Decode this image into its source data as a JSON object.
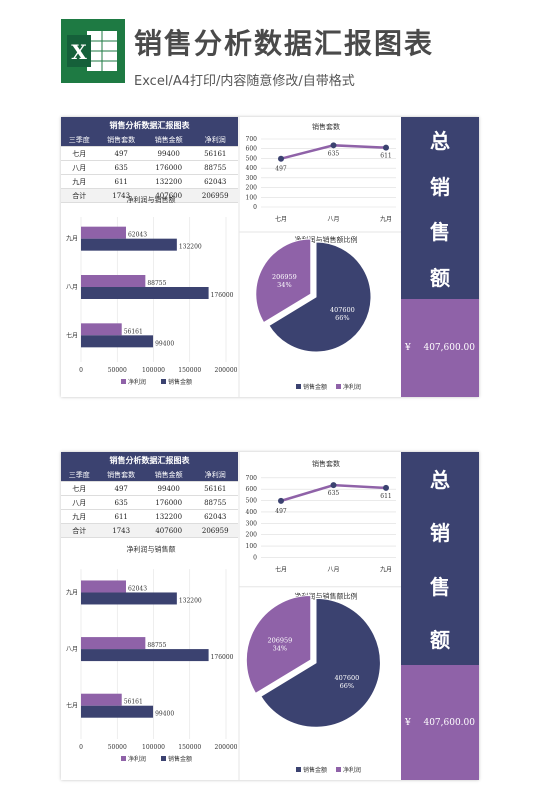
{
  "header": {
    "title": "销售分析数据汇报图表",
    "subtitle": "Excel/A4打印/内容随意修改/自带格式",
    "logo_letter": "X"
  },
  "table": {
    "caption": "销售分析数据汇报图表",
    "columns": [
      "三季度",
      "销售套数",
      "销售金额",
      "净利润"
    ],
    "rows": [
      [
        "七月",
        "497",
        "99400",
        "56161"
      ],
      [
        "八月",
        "635",
        "176000",
        "88755"
      ],
      [
        "九月",
        "611",
        "132200",
        "62043"
      ],
      [
        "合计",
        "1743",
        "407600",
        "206959"
      ]
    ]
  },
  "summary": {
    "label_chars": [
      "总",
      "销",
      "售",
      "额"
    ],
    "currency": "¥",
    "value": "407,600.00"
  },
  "colors": {
    "navy": "#3b4270",
    "purple": "#8f62a8"
  },
  "chart_data": [
    {
      "type": "line",
      "title": "销售套数",
      "categories": [
        "七月",
        "八月",
        "九月"
      ],
      "values": [
        497,
        635,
        611
      ],
      "ylim": [
        0,
        700
      ],
      "yticks": [
        "0",
        "100",
        "200",
        "300",
        "400",
        "500",
        "600",
        "700"
      ]
    },
    {
      "type": "bar",
      "orientation": "horizontal",
      "title": "净利润与销售额",
      "categories": [
        "九月",
        "八月",
        "七月"
      ],
      "series": [
        {
          "name": "净利润",
          "values": [
            62043,
            88755,
            56161
          ]
        },
        {
          "name": "销售金额",
          "values": [
            132200,
            176000,
            99400
          ]
        }
      ],
      "xlim": [
        0,
        200000
      ],
      "xticks": [
        "0",
        "50000",
        "100000",
        "150000",
        "200000"
      ]
    },
    {
      "type": "pie",
      "title": "净利润与销售额比例",
      "slices": [
        {
          "name": "销售金额",
          "value": 407600,
          "label": "407600",
          "pct": "66%"
        },
        {
          "name": "净利润",
          "value": 206959,
          "label": "206959",
          "pct": "34%"
        }
      ]
    }
  ]
}
